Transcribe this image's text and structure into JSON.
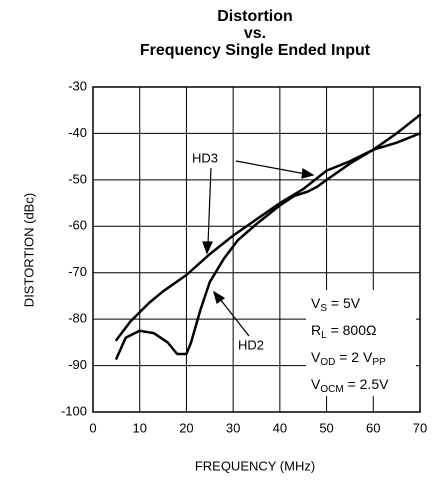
{
  "chart_data": {
    "type": "line",
    "title": [
      "Distortion",
      "vs.",
      "Frequency Single Ended Input"
    ],
    "x_label": "FREQUENCY (MHz)",
    "y_label": "DISTORTION (dBc)",
    "xlim": [
      0,
      70
    ],
    "xticks": [
      0,
      10,
      20,
      30,
      40,
      50,
      60,
      70
    ],
    "ylim": [
      -100,
      -30
    ],
    "yticks": [
      -100,
      -90,
      -80,
      -70,
      -60,
      -50,
      -40,
      -30
    ],
    "grid": true,
    "series": [
      {
        "name": "HD2",
        "color": "#000000",
        "x": [
          5,
          7,
          10,
          13,
          16,
          18,
          20,
          21,
          23,
          25,
          28,
          31,
          35,
          40,
          43,
          46,
          48,
          50,
          55,
          60,
          65,
          70
        ],
        "values": [
          -88.5,
          -84,
          -82.5,
          -83,
          -85,
          -87.5,
          -87.5,
          -85,
          -78,
          -72,
          -67,
          -63,
          -59.5,
          -55.5,
          -53.5,
          -52.5,
          -51.5,
          -50,
          -46.5,
          -43.5,
          -40,
          -36
        ]
      },
      {
        "name": "HD3",
        "color": "#000000",
        "x": [
          5,
          8,
          12,
          15,
          20,
          25,
          30,
          35,
          40,
          45,
          50,
          55,
          60,
          65,
          70
        ],
        "values": [
          -84.5,
          -80.5,
          -76.5,
          -74,
          -70.5,
          -66,
          -62,
          -58.5,
          -55,
          -52,
          -48,
          -46,
          -43.5,
          -42,
          -40
        ]
      }
    ],
    "conditions": [
      [
        "V",
        "S",
        " = 5V"
      ],
      [
        "R",
        "L",
        " = 800Ω"
      ],
      [
        "V",
        "OD",
        " = 2 V",
        "PP"
      ],
      [
        "V",
        "OCM",
        " = 2.5V"
      ]
    ]
  }
}
